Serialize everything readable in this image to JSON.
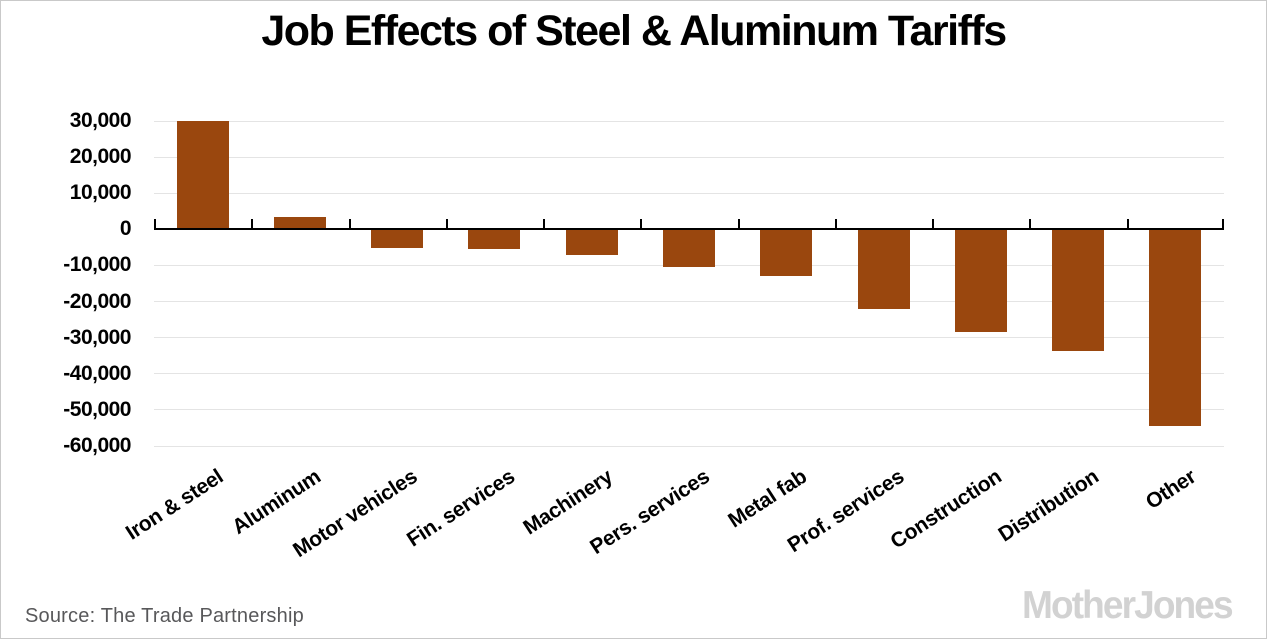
{
  "title": "Job Effects of Steel & Aluminum Tariffs",
  "source": "Source: The Trade Partnership",
  "watermark": "MotherJones",
  "colors": {
    "bar": "#9a470e",
    "gridline": "#e4e4e4",
    "axis": "#000000",
    "source_text": "#58585a",
    "watermark_gray": "#d2d2d2",
    "frame_border": "#c9c9c9"
  },
  "chart_data": {
    "type": "bar",
    "title": "Job Effects of Steel & Aluminum Tariffs",
    "categories": [
      "Iron & steel",
      "Aluminum",
      "Motor vehicles",
      "Fin. services",
      "Machinery",
      "Pers. services",
      "Metal fab",
      "Prof. services",
      "Construction",
      "Distribution",
      "Other"
    ],
    "values": [
      30000,
      3300,
      -5100,
      -5400,
      -7000,
      -10400,
      -12900,
      -22000,
      -28400,
      -33700,
      -54400
    ],
    "xlabel": "",
    "ylabel": "",
    "ylim": [
      -60000,
      30000
    ],
    "ytick_step": 10000,
    "yticks": [
      30000,
      20000,
      10000,
      0,
      -10000,
      -20000,
      -30000,
      -40000,
      -50000,
      -60000
    ],
    "ytick_labels": [
      "30,000",
      "20,000",
      "10,000",
      "0",
      "-10,000",
      "-20,000",
      "-30,000",
      "-40,000",
      "-50,000",
      "-60,000"
    ],
    "grid": true,
    "legend": "none",
    "bar_color": "#9a470e"
  }
}
